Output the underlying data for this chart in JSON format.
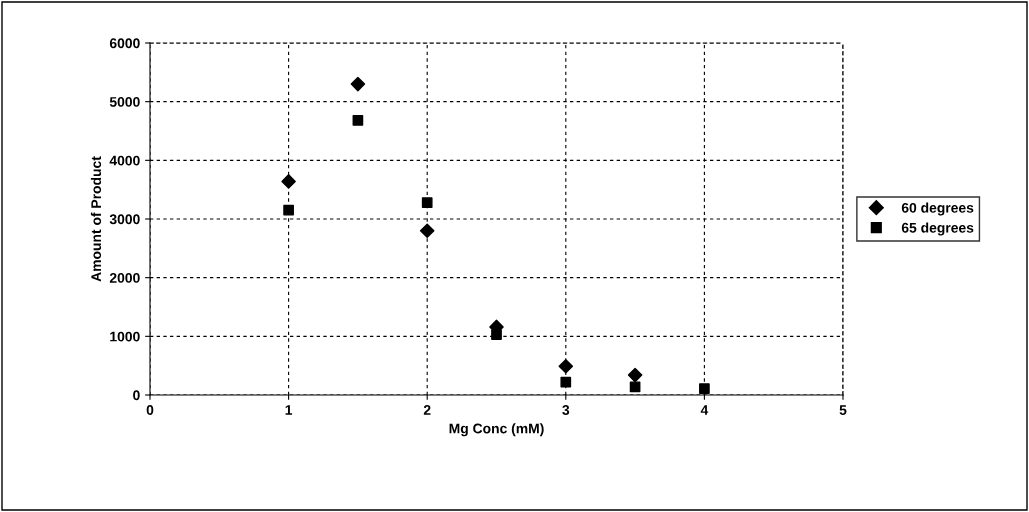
{
  "chart_data": {
    "type": "scatter",
    "xlabel": "Mg Conc (mM)",
    "ylabel": "Amount of Product",
    "x": [
      1,
      1.5,
      2,
      2.5,
      3,
      3.5,
      4
    ],
    "series": [
      {
        "name": "60 degrees",
        "color": "#000000",
        "marker": "diamond",
        "values": [
          3640,
          5300,
          2800,
          1160,
          490,
          340,
          null
        ]
      },
      {
        "name": "65 degrees",
        "color": "#000000",
        "marker": "square",
        "values": [
          3150,
          4680,
          3280,
          1030,
          220,
          140,
          110
        ]
      }
    ],
    "xlim": [
      0,
      5
    ],
    "xticks": [
      0,
      1,
      2,
      3,
      4,
      5
    ],
    "ylim": [
      0,
      6000
    ],
    "yticks": [
      0,
      1000,
      2000,
      3000,
      4000,
      5000,
      6000
    ],
    "grid": true,
    "legend": "right"
  }
}
